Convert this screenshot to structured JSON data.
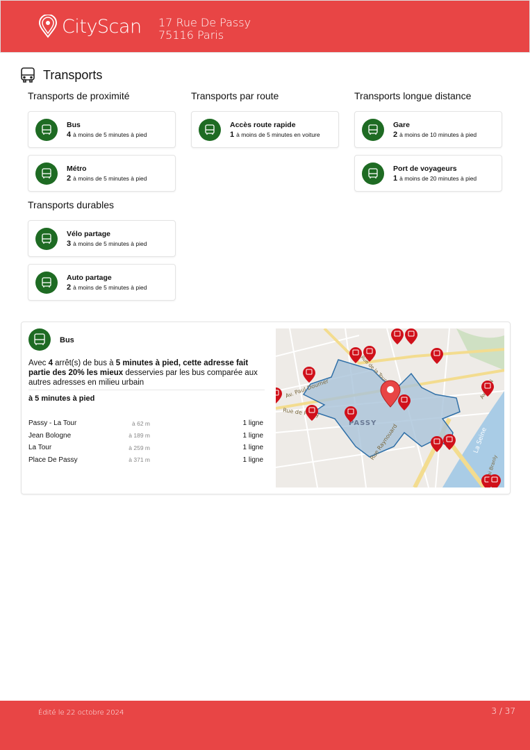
{
  "header": {
    "brand": "CityScan",
    "address_line1": "17 Rue De Passy",
    "address_line2": "75116 Paris",
    "color": "#e84545"
  },
  "section": {
    "title": "Transports",
    "icon": "bus-icon"
  },
  "columns": [
    {
      "heading": "Transports de proximité",
      "cards": [
        {
          "name": "Bus",
          "count": "4",
          "detail": "à moins de 5 minutes à pied",
          "icon": "bus-icon"
        },
        {
          "name": "Métro",
          "count": "2",
          "detail": "à moins de 5 minutes à pied",
          "icon": "metro-icon"
        }
      ]
    },
    {
      "heading": "Transports par route",
      "cards": [
        {
          "name": "Accès route rapide",
          "count": "1",
          "detail": "à moins de 5 minutes en voiture",
          "icon": "highway-icon"
        }
      ]
    },
    {
      "heading": "Transports longue distance",
      "cards": [
        {
          "name": "Gare",
          "count": "2",
          "detail": "à moins de 10 minutes à pied",
          "icon": "train-station-icon"
        },
        {
          "name": "Port de voyageurs",
          "count": "1",
          "detail": "à moins de 20 minutes à pied",
          "icon": "ship-icon"
        }
      ]
    },
    {
      "heading": "Transports durables",
      "cards": [
        {
          "name": "Vélo partage",
          "count": "3",
          "detail": "à moins de 5 minutes à pied",
          "icon": "bike-share-icon"
        },
        {
          "name": "Auto partage",
          "count": "2",
          "detail": "à moins de 5 minutes à pied",
          "icon": "car-share-icon"
        }
      ]
    }
  ],
  "detail": {
    "title": "Bus",
    "desc": {
      "p1": "Avec ",
      "b1": "4",
      "p2": " arrêt(s) de bus à ",
      "b2": "5 minutes à pied, cette adresse fait partie des 20% les mieux",
      "p3": " desservies par les bus comparée aux autres adresses en milieu urbain"
    },
    "walk_label": "à 5 minutes à pied",
    "stops": [
      {
        "name": "Passy - La Tour",
        "dist": "à 62 m",
        "lines": "1 ligne"
      },
      {
        "name": "Jean Bologne",
        "dist": "à 189 m",
        "lines": "1 ligne"
      },
      {
        "name": "La Tour",
        "dist": "à 259 m",
        "lines": "1 ligne"
      },
      {
        "name": "Place De Passy",
        "dist": "à 371 m",
        "lines": "1 ligne"
      }
    ],
    "map": {
      "district": "PASSY",
      "streets": [
        "Av. Paul Doumer",
        "Rue de Passy",
        "Rue Raynouard",
        "Rue de la Tour",
        "Av. de N",
        "La Seine",
        "Quai Branly"
      ]
    }
  },
  "footer": {
    "edited": "Édité le 22 octobre 2024",
    "page": "3 / 37"
  },
  "colors": {
    "green": "#1e6b23",
    "pin": "#d0101a"
  }
}
